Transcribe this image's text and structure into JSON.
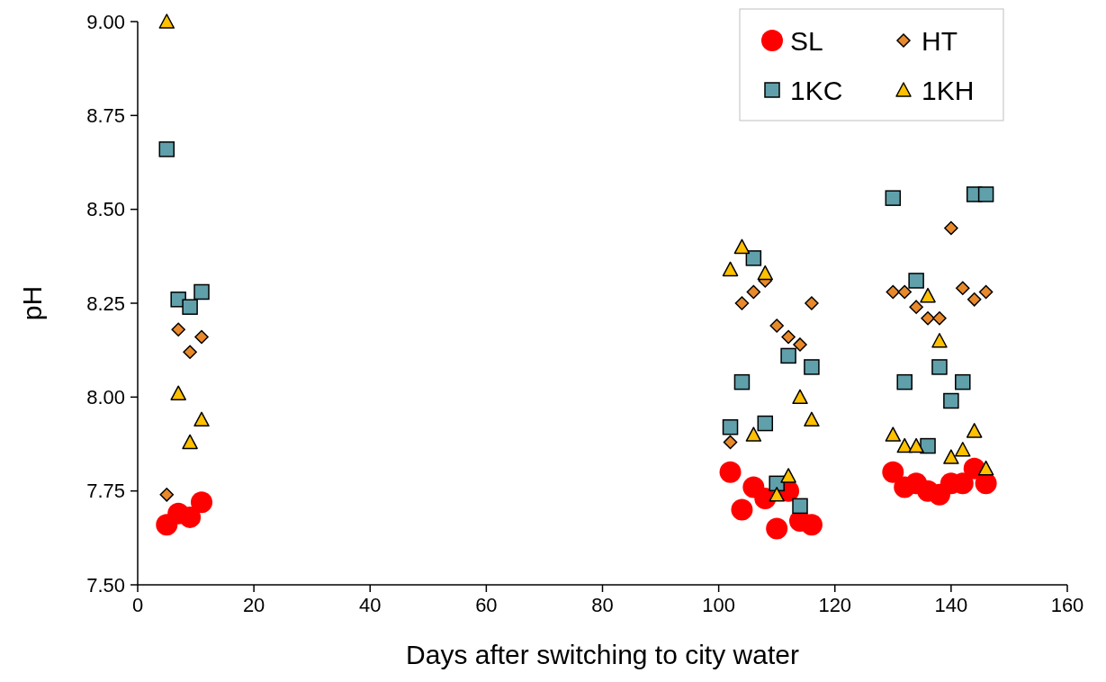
{
  "chart_data": {
    "type": "scatter",
    "xlabel": "Days after switching to city water",
    "ylabel": "pH",
    "xlim": [
      0,
      160
    ],
    "xticks": [
      0,
      20,
      40,
      60,
      80,
      100,
      120,
      140,
      160
    ],
    "ylim": [
      7.5,
      9
    ],
    "yticks": [
      {
        "value": 7.5,
        "label": "7.50"
      },
      {
        "value": 7.75,
        "label": "7.75"
      },
      {
        "value": 8,
        "label": "8.00"
      },
      {
        "value": 8.25,
        "label": "8.25"
      },
      {
        "value": 8.5,
        "label": "8.50"
      },
      {
        "value": 8.75,
        "label": "8.75"
      },
      {
        "value": 9,
        "label": "9.00"
      }
    ],
    "grid": false,
    "legend": "top right",
    "x": [
      5,
      7,
      9,
      11,
      102,
      104,
      106,
      108,
      110,
      112,
      114,
      116,
      130,
      132,
      134,
      136,
      138,
      140,
      142,
      144,
      146
    ],
    "series": [
      {
        "name": "SL",
        "color": "#ff0000",
        "marker": "circle",
        "values": [
          7.66,
          7.69,
          7.68,
          7.72,
          7.8,
          7.7,
          7.76,
          7.73,
          7.65,
          7.75,
          7.67,
          7.66,
          7.8,
          7.76,
          7.77,
          7.75,
          7.74,
          7.77,
          7.77,
          7.81,
          7.77
        ]
      },
      {
        "name": "HT",
        "color": "#e8892b",
        "marker": "diamond",
        "values": [
          7.74,
          8.18,
          8.12,
          8.16,
          7.88,
          8.25,
          8.28,
          8.31,
          8.19,
          8.16,
          8.14,
          8.25,
          8.28,
          8.28,
          8.24,
          8.21,
          8.21,
          8.45,
          8.29,
          8.26,
          8.28
        ]
      },
      {
        "name": "1KC",
        "color": "#5fa0ab",
        "marker": "square",
        "values": [
          8.66,
          8.26,
          8.24,
          8.28,
          7.92,
          8.04,
          8.37,
          7.93,
          7.77,
          8.11,
          7.71,
          8.08,
          8.53,
          8.04,
          8.31,
          7.87,
          8.08,
          7.99,
          8.04,
          8.54,
          8.54
        ]
      },
      {
        "name": "1KH",
        "color": "#ffc000",
        "marker": "triangle",
        "values": [
          9.0,
          8.01,
          7.88,
          7.94,
          8.34,
          8.4,
          7.9,
          8.33,
          7.74,
          7.79,
          8.0,
          7.94,
          7.9,
          7.87,
          7.87,
          8.27,
          8.15,
          7.84,
          7.86,
          7.91,
          7.81
        ]
      }
    ]
  }
}
